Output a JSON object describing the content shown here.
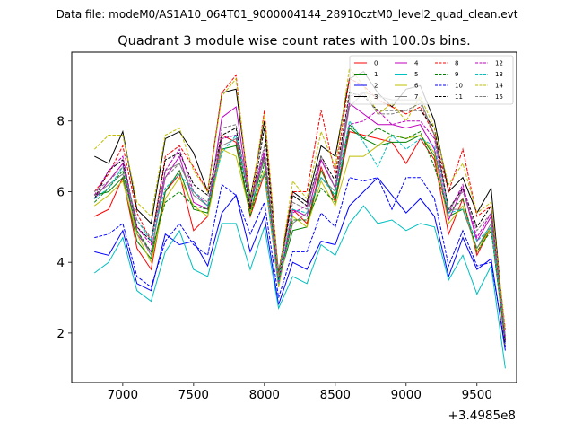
{
  "figure": {
    "suptitle": "Data file: modeM0/AS1A10_064T01_9000004144_28910cztM0_level2_quad_clean.evt",
    "title": "Quadrant 3 module wise count rates with 100.0s bins.",
    "offset_label": "+3.4985e8"
  },
  "chart_data": {
    "type": "line",
    "title": "Quadrant 3 module wise count rates with 100.0s bins.",
    "xlabel": "",
    "ylabel": "",
    "x_offset": 349850000,
    "xlim": [
      6640,
      9780
    ],
    "ylim": [
      0.6,
      9.95
    ],
    "xticks": [
      7000,
      7500,
      8000,
      8500,
      9000,
      9500
    ],
    "yticks": [
      2,
      4,
      6,
      8
    ],
    "xtick_labels": [
      "7000",
      "7500",
      "8000",
      "8500",
      "9000",
      "9500"
    ],
    "ytick_labels": [
      "2",
      "4",
      "6",
      "8"
    ],
    "legend_position": "top-right",
    "x": [
      6800,
      6900,
      7000,
      7100,
      7200,
      7300,
      7400,
      7500,
      7600,
      7700,
      7800,
      7900,
      8000,
      8100,
      8200,
      8300,
      8400,
      8500,
      8600,
      8700,
      8800,
      8900,
      9000,
      9100,
      9200,
      9300,
      9400,
      9500,
      9600,
      9700
    ],
    "series": [
      {
        "name": "0",
        "color": "#ff0000",
        "dash": "solid",
        "values": [
          5.3,
          5.5,
          6.4,
          4.4,
          3.8,
          6.0,
          6.5,
          4.9,
          5.3,
          7.6,
          7.4,
          5.3,
          6.5,
          3.3,
          5.5,
          5.1,
          6.7,
          5.7,
          7.7,
          7.6,
          7.5,
          7.4,
          6.8,
          7.5,
          6.9,
          4.8,
          5.8,
          4.2,
          5.0,
          1.6
        ]
      },
      {
        "name": "1",
        "color": "#008000",
        "dash": "solid",
        "values": [
          5.9,
          6.0,
          6.4,
          4.6,
          4.1,
          6.0,
          6.6,
          5.5,
          5.4,
          7.2,
          7.3,
          5.4,
          7.0,
          3.5,
          4.9,
          5.0,
          6.6,
          5.8,
          7.8,
          7.5,
          7.3,
          7.4,
          7.4,
          7.6,
          7.0,
          5.3,
          5.5,
          4.4,
          5.0,
          1.8
        ]
      },
      {
        "name": "2",
        "color": "#0000ff",
        "dash": "solid",
        "values": [
          4.3,
          4.2,
          4.9,
          3.4,
          3.2,
          4.8,
          4.5,
          4.6,
          3.9,
          5.4,
          5.9,
          4.3,
          5.3,
          2.8,
          4.0,
          3.8,
          4.6,
          4.5,
          5.6,
          6.0,
          6.4,
          5.9,
          5.4,
          5.8,
          5.3,
          3.6,
          4.7,
          3.8,
          4.1,
          1.5
        ]
      },
      {
        "name": "3",
        "color": "#000000",
        "dash": "solid",
        "values": [
          7.0,
          6.8,
          7.7,
          5.5,
          5.1,
          7.5,
          7.7,
          7.1,
          6.0,
          8.8,
          8.9,
          5.8,
          8.0,
          3.7,
          6.0,
          5.7,
          7.3,
          7.0,
          9.2,
          9.4,
          8.8,
          8.4,
          8.9,
          9.0,
          8.0,
          6.0,
          6.4,
          5.4,
          6.1,
          1.8
        ]
      },
      {
        "name": "4",
        "color": "#bf00bf",
        "dash": "solid",
        "values": [
          5.8,
          6.3,
          6.8,
          4.8,
          4.3,
          6.4,
          7.0,
          5.7,
          5.5,
          8.1,
          8.4,
          5.6,
          7.1,
          3.4,
          5.5,
          5.3,
          6.9,
          6.1,
          8.5,
          8.2,
          7.9,
          7.9,
          7.8,
          7.9,
          7.2,
          5.2,
          6.1,
          4.6,
          5.3,
          1.9
        ]
      },
      {
        "name": "5",
        "color": "#00bfbf",
        "dash": "solid",
        "values": [
          3.7,
          4.0,
          4.7,
          3.2,
          2.9,
          4.3,
          4.9,
          3.8,
          3.6,
          5.1,
          5.1,
          3.8,
          5.0,
          2.7,
          3.6,
          3.4,
          4.5,
          4.2,
          5.1,
          5.6,
          5.1,
          5.2,
          4.9,
          5.1,
          5.0,
          3.5,
          4.2,
          3.1,
          3.9,
          1.0
        ]
      },
      {
        "name": "6",
        "color": "#bfbf00",
        "dash": "solid",
        "values": [
          5.6,
          5.9,
          6.3,
          4.8,
          4.0,
          5.8,
          6.4,
          5.6,
          5.3,
          7.2,
          7.0,
          5.4,
          6.6,
          3.3,
          5.3,
          5.0,
          6.3,
          5.6,
          7.0,
          7.0,
          7.3,
          7.6,
          7.5,
          7.6,
          7.1,
          5.1,
          5.6,
          4.3,
          5.0,
          1.6
        ]
      },
      {
        "name": "7",
        "color": "#7f7f7f",
        "dash": "solid",
        "values": [
          5.9,
          6.2,
          6.5,
          4.9,
          4.2,
          6.6,
          6.8,
          5.9,
          5.6,
          7.3,
          7.5,
          5.7,
          6.9,
          3.5,
          5.1,
          5.4,
          6.4,
          6.0,
          8.4,
          8.8,
          8.7,
          8.6,
          8.6,
          8.6,
          7.6,
          5.5,
          5.5,
          4.4,
          5.1,
          1.7
        ]
      },
      {
        "name": "8",
        "color": "#ff0000",
        "dash": "dashed",
        "values": [
          6.0,
          6.5,
          7.3,
          5.4,
          4.6,
          7.0,
          7.3,
          6.7,
          6.0,
          8.8,
          9.3,
          5.5,
          8.3,
          3.6,
          6.0,
          6.0,
          8.3,
          6.5,
          9.2,
          9.0,
          8.6,
          8.4,
          8.2,
          8.4,
          7.6,
          6.0,
          7.2,
          5.3,
          5.6,
          2.1
        ]
      },
      {
        "name": "9",
        "color": "#008000",
        "dash": "dashed",
        "values": [
          5.7,
          6.1,
          6.6,
          4.9,
          4.3,
          5.7,
          6.0,
          5.6,
          5.5,
          7.5,
          7.6,
          5.3,
          6.8,
          3.5,
          5.2,
          5.2,
          6.1,
          5.7,
          7.9,
          7.5,
          7.8,
          7.6,
          7.5,
          7.7,
          6.7,
          5.4,
          5.8,
          4.3,
          4.9,
          1.8
        ]
      },
      {
        "name": "10",
        "color": "#0000ff",
        "dash": "dashed",
        "values": [
          4.7,
          4.8,
          5.1,
          3.6,
          3.3,
          4.6,
          5.1,
          4.5,
          4.2,
          6.2,
          5.9,
          4.8,
          5.7,
          3.0,
          4.3,
          4.3,
          5.4,
          5.0,
          6.4,
          6.3,
          6.4,
          5.5,
          6.4,
          6.4,
          5.8,
          3.9,
          4.9,
          3.9,
          4.0,
          1.6
        ]
      },
      {
        "name": "11",
        "color": "#000000",
        "dash": "dashed",
        "values": [
          5.8,
          6.6,
          6.9,
          5.0,
          4.6,
          6.9,
          7.1,
          6.2,
          5.9,
          7.6,
          7.8,
          5.5,
          7.8,
          3.5,
          5.9,
          5.6,
          7.0,
          6.3,
          8.8,
          8.7,
          8.3,
          8.3,
          8.3,
          8.3,
          7.8,
          5.5,
          6.1,
          5.0,
          5.6,
          1.7
        ]
      },
      {
        "name": "12",
        "color": "#bf00bf",
        "dash": "dashed",
        "values": [
          5.9,
          6.6,
          7.0,
          5.0,
          4.5,
          6.6,
          7.2,
          6.0,
          5.6,
          7.5,
          7.6,
          5.7,
          7.2,
          3.4,
          5.4,
          5.6,
          6.9,
          6.1,
          7.9,
          8.0,
          8.3,
          7.9,
          8.0,
          8.0,
          7.5,
          5.4,
          6.2,
          4.7,
          5.4,
          1.8
        ]
      },
      {
        "name": "13",
        "color": "#00bfbf",
        "dash": "dashed",
        "values": [
          5.8,
          6.1,
          6.7,
          5.2,
          4.6,
          6.1,
          6.5,
          6.0,
          5.6,
          7.1,
          7.6,
          5.7,
          6.5,
          3.4,
          5.5,
          5.4,
          6.4,
          5.9,
          8.0,
          7.4,
          6.7,
          7.6,
          7.2,
          7.5,
          7.3,
          5.4,
          5.5,
          4.6,
          5.0,
          1.9
        ]
      },
      {
        "name": "14",
        "color": "#bfbf00",
        "dash": "dashed",
        "values": [
          7.2,
          7.6,
          7.6,
          5.7,
          5.3,
          7.6,
          7.8,
          6.6,
          6.0,
          8.7,
          9.2,
          5.7,
          8.2,
          3.6,
          6.3,
          5.8,
          7.7,
          6.7,
          9.5,
          9.0,
          8.2,
          8.5,
          8.0,
          8.7,
          7.8,
          6.2,
          6.8,
          5.4,
          5.7,
          2.1
        ]
      },
      {
        "name": "15",
        "color": "#7f7f7f",
        "dash": "dashed",
        "values": [
          6.0,
          6.3,
          6.7,
          5.2,
          4.7,
          6.4,
          6.8,
          6.0,
          5.7,
          7.8,
          7.9,
          5.7,
          7.3,
          3.6,
          5.7,
          5.5,
          7.0,
          6.1,
          8.7,
          8.8,
          8.2,
          8.2,
          8.3,
          8.5,
          7.6,
          5.5,
          6.0,
          4.9,
          5.4,
          1.9
        ]
      }
    ]
  }
}
